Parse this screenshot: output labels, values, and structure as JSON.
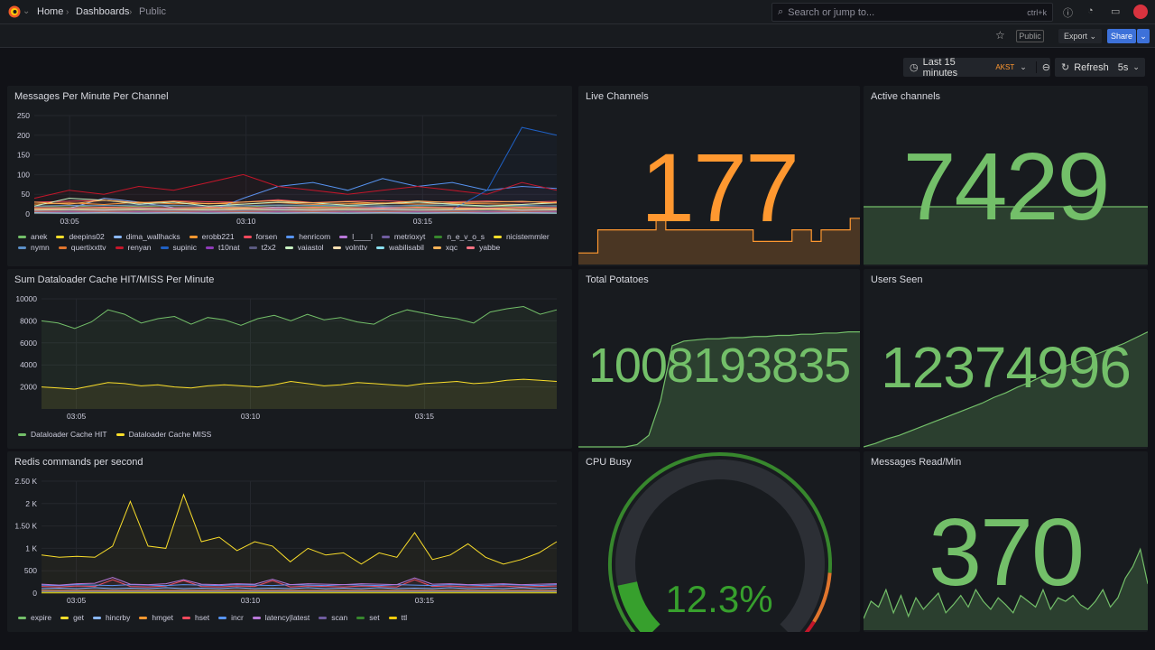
{
  "nav": {
    "breadcrumb": [
      "Home",
      "Dashboards",
      "Public"
    ],
    "search_placeholder": "Search or jump to...",
    "search_shortcut": "ctrl+k"
  },
  "toolbar": {
    "public_badge": "Public",
    "export_label": "Export",
    "share_label": "Share",
    "time_range": "Last 15 minutes",
    "timezone": "AKST",
    "refresh_label": "Refresh",
    "refresh_interval": "5s"
  },
  "panels": {
    "messages": {
      "title": "Messages Per Minute Per Channel"
    },
    "cache": {
      "title": "Sum Dataloader Cache HIT/MISS Per Minute"
    },
    "redis": {
      "title": "Redis commands per second"
    },
    "live": {
      "title": "Live Channels",
      "value": "177",
      "color": "#ff9830"
    },
    "active": {
      "title": "Active channels",
      "value": "7429",
      "color": "#73bf69"
    },
    "potatoes": {
      "title": "Total Potatoes",
      "value": "1008193835",
      "color": "#73bf69"
    },
    "users": {
      "title": "Users Seen",
      "value": "12374996",
      "color": "#73bf69"
    },
    "cpu": {
      "title": "CPU Busy",
      "value": "12.3%",
      "percent": 12.3,
      "thresholds": [
        {
          "color": "#37872d",
          "to": 85
        },
        {
          "color": "#e0752d",
          "to": 95
        },
        {
          "color": "#c4162a",
          "to": 100
        }
      ]
    },
    "msgread": {
      "title": "Messages Read/Min",
      "value": "370",
      "color": "#73bf69"
    }
  },
  "chart_data": [
    {
      "type": "line",
      "title": "Messages Per Minute Per Channel",
      "x_ticks": [
        "03:05",
        "03:10",
        "03:15"
      ],
      "xlim": [
        4.0,
        18.8
      ],
      "ylim": [
        0,
        250
      ],
      "y_ticks": [
        "0",
        "50",
        "100",
        "150",
        "200",
        "250"
      ],
      "legend": "bottom",
      "series": [
        {
          "name": "anek",
          "color": "#73bf69",
          "values": [
            20,
            18,
            22,
            19,
            21,
            20,
            18,
            22,
            20,
            19,
            21,
            20,
            22,
            19,
            20,
            21
          ]
        },
        {
          "name": "deepins02",
          "color": "#fade2a",
          "values": [
            10,
            12,
            9,
            11,
            10,
            13,
            9,
            10,
            12,
            11,
            10,
            9,
            11,
            12,
            10,
            11
          ]
        },
        {
          "name": "dima_wallhacks",
          "color": "#8ab8ff",
          "values": [
            15,
            14,
            40,
            30,
            16,
            15,
            14,
            18,
            16,
            15,
            17,
            16,
            15,
            14,
            16,
            15
          ]
        },
        {
          "name": "erobb221",
          "color": "#ff9830",
          "values": [
            25,
            28,
            24,
            30,
            26,
            27,
            25,
            29,
            24,
            26,
            28,
            25,
            27,
            26,
            24,
            30
          ]
        },
        {
          "name": "forsen",
          "color": "#f2495c",
          "values": [
            30,
            32,
            35,
            28,
            33,
            31,
            30,
            36,
            29,
            32,
            34,
            30,
            31,
            33,
            30,
            32
          ]
        },
        {
          "name": "henricom",
          "color": "#5794f2",
          "values": [
            5,
            6,
            5,
            7,
            6,
            5,
            40,
            70,
            80,
            60,
            90,
            70,
            80,
            60,
            70,
            65
          ]
        },
        {
          "name": "l____l",
          "color": "#b877d9",
          "values": [
            8,
            9,
            7,
            8,
            9,
            8,
            7,
            9,
            8,
            7,
            9,
            8,
            9,
            8,
            7,
            8
          ]
        },
        {
          "name": "metrioxyt",
          "color": "#705da0",
          "values": [
            12,
            11,
            13,
            12,
            11,
            12,
            13,
            11,
            12,
            13,
            12,
            11,
            12,
            13,
            11,
            12
          ]
        },
        {
          "name": "n_e_v_o_s",
          "color": "#37872d",
          "values": [
            3,
            4,
            3,
            4,
            3,
            4,
            3,
            4,
            3,
            4,
            3,
            4,
            3,
            4,
            3,
            4
          ]
        },
        {
          "name": "nicistemmler",
          "color": "#fade2a",
          "values": [
            14,
            13,
            15,
            14,
            13,
            15,
            14,
            13,
            15,
            14,
            13,
            15,
            14,
            13,
            15,
            14
          ]
        },
        {
          "name": "nymn",
          "color": "#5b8fc7",
          "values": [
            20,
            22,
            21,
            23,
            22,
            20,
            21,
            23,
            22,
            21,
            20,
            22,
            23,
            21,
            22,
            20
          ]
        },
        {
          "name": "quertixxttv",
          "color": "#e0752d",
          "values": [
            6,
            7,
            6,
            7,
            6,
            7,
            6,
            7,
            6,
            7,
            6,
            7,
            6,
            7,
            6,
            7
          ]
        },
        {
          "name": "renyan",
          "color": "#c4162a",
          "values": [
            40,
            60,
            50,
            70,
            60,
            80,
            100,
            70,
            60,
            50,
            60,
            70,
            60,
            50,
            80,
            60
          ]
        },
        {
          "name": "supinic",
          "color": "#1f60c4",
          "values": [
            10,
            12,
            11,
            13,
            12,
            11,
            12,
            13,
            11,
            12,
            13,
            12,
            11,
            60,
            220,
            200
          ]
        },
        {
          "name": "t10nat",
          "color": "#8f3bb8",
          "values": [
            4,
            5,
            4,
            5,
            4,
            5,
            4,
            5,
            4,
            5,
            4,
            5,
            4,
            5,
            4,
            5
          ]
        },
        {
          "name": "t2x2",
          "color": "#5a5a80",
          "values": [
            9,
            8,
            9,
            8,
            9,
            8,
            9,
            8,
            9,
            8,
            9,
            8,
            9,
            8,
            9,
            8
          ]
        },
        {
          "name": "vaiastol",
          "color": "#c8f2c2",
          "values": [
            20,
            40,
            35,
            25,
            30,
            20,
            25,
            30,
            28,
            22,
            26,
            30,
            25,
            20,
            24,
            28
          ]
        },
        {
          "name": "volnttv",
          "color": "#ffe0b2",
          "values": [
            10,
            11,
            10,
            12,
            11,
            10,
            12,
            11,
            10,
            11,
            12,
            10,
            11,
            12,
            10,
            11
          ]
        },
        {
          "name": "wabilisabil",
          "color": "#8ae0f0",
          "values": [
            3,
            2,
            3,
            2,
            3,
            2,
            3,
            2,
            3,
            2,
            3,
            2,
            3,
            2,
            3,
            2
          ]
        },
        {
          "name": "xqc",
          "color": "#ffb357",
          "values": [
            30,
            25,
            35,
            28,
            32,
            26,
            30,
            34,
            28,
            31,
            27,
            33,
            29,
            30,
            32,
            28
          ]
        },
        {
          "name": "yabbe",
          "color": "#ff7383",
          "values": [
            16,
            15,
            17,
            16,
            15,
            17,
            16,
            15,
            17,
            16,
            15,
            17,
            16,
            15,
            17,
            16
          ]
        }
      ]
    },
    {
      "type": "area",
      "title": "Sum Dataloader Cache HIT/MISS Per Minute",
      "x_ticks": [
        "03:05",
        "03:10",
        "03:15"
      ],
      "xlim": [
        4.0,
        18.8
      ],
      "ylim": [
        0,
        10000
      ],
      "y_ticks": [
        "2000",
        "4000",
        "6000",
        "8000",
        "10000"
      ],
      "legend": "bottom",
      "series": [
        {
          "name": "Dataloader Cache HIT",
          "color": "#73bf69",
          "values": [
            8000,
            7800,
            7300,
            7900,
            9000,
            8600,
            7800,
            8200,
            8400,
            7700,
            8300,
            8100,
            7600,
            8200,
            8500,
            8000,
            8600,
            8100,
            8300,
            7900,
            7700,
            8500,
            9000,
            8700,
            8400,
            8200,
            7800,
            8800,
            9100,
            9300,
            8600,
            9000
          ]
        },
        {
          "name": "Dataloader Cache MISS",
          "color": "#fade2a",
          "values": [
            2000,
            1900,
            1800,
            2100,
            2400,
            2300,
            2100,
            2200,
            2000,
            1900,
            2100,
            2200,
            2100,
            2000,
            2200,
            2500,
            2300,
            2100,
            2200,
            2400,
            2300,
            2200,
            2100,
            2300,
            2400,
            2500,
            2300,
            2400,
            2600,
            2700,
            2600,
            2500
          ]
        }
      ]
    },
    {
      "type": "line",
      "title": "Redis commands per second",
      "x_ticks": [
        "03:05",
        "03:10",
        "03:15"
      ],
      "xlim": [
        4.0,
        18.8
      ],
      "ylim": [
        0,
        2500
      ],
      "y_ticks": [
        "0",
        "500",
        "1 K",
        "1.50 K",
        "2 K",
        "2.50 K"
      ],
      "legend": "bottom",
      "series": [
        {
          "name": "expire",
          "color": "#73bf69",
          "values": [
            20,
            20,
            20,
            20,
            20,
            20,
            20,
            20,
            20,
            20,
            20,
            20,
            20,
            20,
            20,
            20,
            20,
            20,
            20,
            20,
            20,
            20,
            20,
            20,
            20,
            20,
            20,
            20,
            20,
            20
          ]
        },
        {
          "name": "get",
          "color": "#fade2a",
          "values": [
            850,
            800,
            820,
            800,
            1050,
            2050,
            1050,
            1000,
            2200,
            1150,
            1250,
            950,
            1150,
            1050,
            700,
            1000,
            850,
            900,
            650,
            900,
            800,
            1350,
            750,
            850,
            1100,
            800,
            650,
            750,
            900,
            1150
          ]
        },
        {
          "name": "hincrby",
          "color": "#8ab8ff",
          "values": [
            100,
            110,
            100,
            120,
            100,
            110,
            100,
            120,
            100,
            110,
            100,
            120,
            100,
            110,
            100,
            120,
            100,
            110,
            100,
            120,
            100,
            110,
            100,
            120,
            100,
            110,
            100,
            120,
            100,
            110
          ]
        },
        {
          "name": "hmget",
          "color": "#ff9830",
          "values": [
            60,
            60,
            60,
            60,
            60,
            60,
            60,
            60,
            60,
            60,
            60,
            60,
            60,
            60,
            60,
            60,
            60,
            60,
            60,
            60,
            60,
            60,
            60,
            60,
            60,
            60,
            60,
            60,
            60,
            60
          ]
        },
        {
          "name": "hset",
          "color": "#f2495c",
          "values": [
            150,
            140,
            160,
            150,
            300,
            150,
            140,
            160,
            280,
            150,
            140,
            160,
            150,
            280,
            140,
            160,
            150,
            140,
            160,
            150,
            140,
            300,
            150,
            160,
            140,
            150,
            160,
            140,
            150,
            160
          ]
        },
        {
          "name": "incr",
          "color": "#5794f2",
          "values": [
            180,
            170,
            190,
            180,
            170,
            190,
            180,
            170,
            190,
            180,
            170,
            190,
            180,
            170,
            190,
            180,
            170,
            190,
            180,
            170,
            190,
            180,
            170,
            190,
            180,
            170,
            190,
            180,
            170,
            190
          ]
        },
        {
          "name": "latency|latest",
          "color": "#b877d9",
          "values": [
            200,
            180,
            210,
            220,
            350,
            200,
            190,
            210,
            300,
            200,
            190,
            210,
            200,
            310,
            190,
            210,
            200,
            190,
            210,
            200,
            190,
            340,
            200,
            210,
            190,
            200,
            210,
            190,
            200,
            210
          ]
        },
        {
          "name": "scan",
          "color": "#705da0",
          "values": [
            40,
            40,
            40,
            40,
            40,
            40,
            40,
            40,
            40,
            40,
            40,
            40,
            40,
            40,
            40,
            40,
            40,
            40,
            40,
            40,
            40,
            40,
            40,
            40,
            40,
            40,
            40,
            40,
            40,
            40
          ]
        },
        {
          "name": "set",
          "color": "#37872d",
          "values": [
            10,
            10,
            10,
            10,
            10,
            10,
            10,
            10,
            10,
            10,
            10,
            10,
            10,
            10,
            10,
            10,
            10,
            10,
            10,
            10,
            10,
            10,
            10,
            10,
            10,
            10,
            10,
            10,
            10,
            10
          ]
        },
        {
          "name": "ttl",
          "color": "#f2cc0c",
          "values": [
            5,
            5,
            5,
            5,
            5,
            5,
            5,
            5,
            5,
            5,
            5,
            5,
            5,
            5,
            5,
            5,
            5,
            5,
            5,
            5,
            5,
            5,
            5,
            5,
            5,
            5,
            5,
            5,
            5,
            5
          ]
        }
      ]
    },
    {
      "type": "area",
      "title": "Live Channels sparkline",
      "values": [
        10,
        10,
        30,
        30,
        30,
        30,
        30,
        30,
        40,
        30,
        30,
        30,
        30,
        30,
        30,
        30,
        30,
        30,
        20,
        20,
        20,
        20,
        30,
        30,
        20,
        30,
        30,
        30,
        40,
        40
      ]
    },
    {
      "type": "area",
      "title": "Active channels sparkline",
      "values": [
        50,
        50,
        50,
        50,
        50,
        50,
        50,
        50,
        50,
        50
      ]
    },
    {
      "type": "area",
      "title": "Total Potatoes sparkline",
      "values": [
        0,
        0,
        0,
        0,
        0,
        2,
        10,
        40,
        88,
        92,
        93,
        94,
        94,
        95,
        95,
        96,
        96,
        97,
        97,
        98,
        98,
        99,
        99,
        100,
        100
      ]
    },
    {
      "type": "area",
      "title": "Users Seen sparkline",
      "values": [
        0,
        3,
        7,
        10,
        14,
        18,
        22,
        26,
        30,
        34,
        38,
        43,
        47,
        52,
        56,
        61,
        66,
        70,
        74,
        78,
        82,
        86,
        90,
        95,
        100
      ]
    },
    {
      "type": "area",
      "title": "Messages Read/Min sparkline",
      "values": [
        10,
        25,
        20,
        35,
        15,
        30,
        12,
        28,
        18,
        25,
        32,
        15,
        22,
        30,
        20,
        35,
        25,
        18,
        28,
        22,
        15,
        30,
        25,
        20,
        35,
        18,
        28,
        25,
        30,
        22,
        18,
        25,
        35,
        20,
        28,
        45,
        55,
        70,
        40
      ]
    }
  ]
}
